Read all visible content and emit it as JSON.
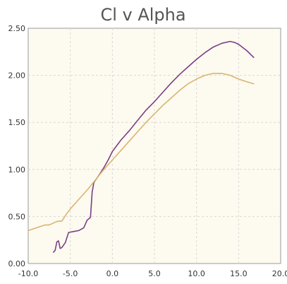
{
  "chart_data": {
    "type": "line",
    "title": "Cl v Alpha",
    "xlabel": "",
    "ylabel": "",
    "xlim": [
      -10,
      20
    ],
    "ylim": [
      0,
      2.5
    ],
    "x_ticks": [
      "-10.0",
      "-5.0",
      "0.0",
      "5.0",
      "10.0",
      "15.0",
      "20.0"
    ],
    "y_ticks": [
      "0.00",
      "0.50",
      "1.00",
      "1.50",
      "2.00",
      "2.50"
    ],
    "grid": true,
    "legend": "none",
    "series": [
      {
        "color": "#7b3f86",
        "points": [
          [
            -7.0,
            0.12
          ],
          [
            -6.8,
            0.14
          ],
          [
            -6.6,
            0.23
          ],
          [
            -6.4,
            0.24
          ],
          [
            -6.2,
            0.16
          ],
          [
            -6.0,
            0.17
          ],
          [
            -5.6,
            0.22
          ],
          [
            -5.2,
            0.33
          ],
          [
            -4.6,
            0.34
          ],
          [
            -4.0,
            0.35
          ],
          [
            -3.4,
            0.38
          ],
          [
            -3.0,
            0.46
          ],
          [
            -2.6,
            0.49
          ],
          [
            -2.4,
            0.76
          ],
          [
            -2.2,
            0.86
          ],
          [
            -1.5,
            0.95
          ],
          [
            -1.0,
            1.02
          ],
          [
            -0.5,
            1.1
          ],
          [
            0.0,
            1.19
          ],
          [
            1.0,
            1.31
          ],
          [
            2.0,
            1.41
          ],
          [
            3.0,
            1.52
          ],
          [
            4.0,
            1.63
          ],
          [
            5.0,
            1.72
          ],
          [
            6.0,
            1.82
          ],
          [
            7.0,
            1.92
          ],
          [
            8.0,
            2.01
          ],
          [
            9.0,
            2.09
          ],
          [
            10.0,
            2.17
          ],
          [
            11.0,
            2.24
          ],
          [
            12.0,
            2.3
          ],
          [
            13.0,
            2.34
          ],
          [
            14.0,
            2.36
          ],
          [
            14.5,
            2.35
          ],
          [
            15.0,
            2.33
          ],
          [
            16.0,
            2.26
          ],
          [
            16.8,
            2.19
          ]
        ]
      },
      {
        "color": "#d9b56f",
        "points": [
          [
            -10.0,
            0.35
          ],
          [
            -9.0,
            0.38
          ],
          [
            -8.0,
            0.41
          ],
          [
            -7.5,
            0.41
          ],
          [
            -7.0,
            0.43
          ],
          [
            -6.5,
            0.45
          ],
          [
            -6.0,
            0.45
          ],
          [
            -5.5,
            0.52
          ],
          [
            -5.0,
            0.58
          ],
          [
            -4.0,
            0.68
          ],
          [
            -3.0,
            0.78
          ],
          [
            -2.0,
            0.89
          ],
          [
            -1.0,
            1.0
          ],
          [
            0.0,
            1.1
          ],
          [
            1.0,
            1.2
          ],
          [
            2.0,
            1.3
          ],
          [
            3.0,
            1.4
          ],
          [
            4.0,
            1.5
          ],
          [
            5.0,
            1.59
          ],
          [
            6.0,
            1.68
          ],
          [
            7.0,
            1.76
          ],
          [
            8.0,
            1.84
          ],
          [
            9.0,
            1.91
          ],
          [
            10.0,
            1.96
          ],
          [
            11.0,
            2.0
          ],
          [
            12.0,
            2.02
          ],
          [
            13.0,
            2.02
          ],
          [
            14.0,
            2.0
          ],
          [
            15.0,
            1.96
          ],
          [
            16.0,
            1.93
          ],
          [
            16.8,
            1.91
          ]
        ]
      }
    ]
  }
}
